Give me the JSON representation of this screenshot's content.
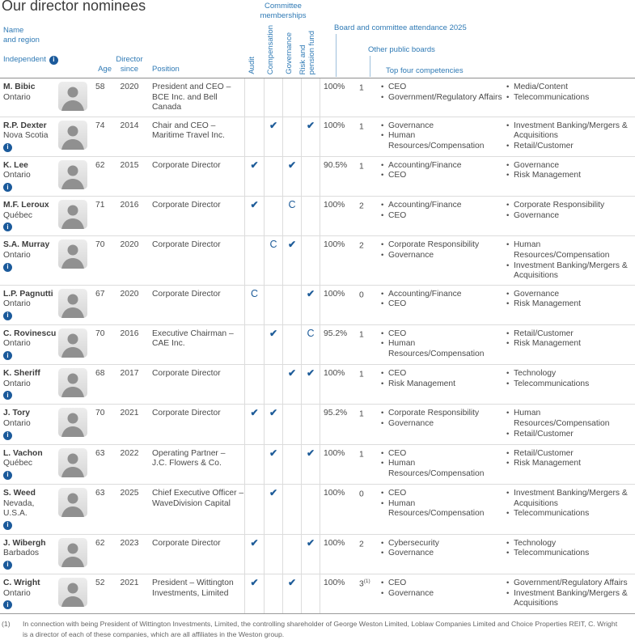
{
  "page": {
    "title": "Our director nominees"
  },
  "colors": {
    "header_blue": "#2f7ab5",
    "mark_blue": "#1e5c99",
    "info_blue": "#1b5a9b"
  },
  "header": {
    "name_region": "Name\nand region",
    "independent": "Independent",
    "age": "Age",
    "director_since": "Director\nsince",
    "position": "Position",
    "committee_group": "Committee\nmemberships",
    "committees": [
      "Audit",
      "Compensation",
      "Governance",
      "Risk and\npension fund"
    ],
    "attendance": "Board and committee attendance 2025",
    "other_boards": "Other public boards",
    "top_competencies": "Top four competencies"
  },
  "legend": {
    "check_icon": "✔",
    "chair_mark": "C",
    "info_glyph": "i"
  },
  "rows": [
    {
      "name": "M. Bibic",
      "region": "Ontario",
      "independent": false,
      "age": "58",
      "since": "2020",
      "position": "President and CEO –\nBCE Inc. and Bell Canada",
      "committees": [
        "",
        "",
        "",
        ""
      ],
      "attendance": "100%",
      "boards": "1",
      "boards_sup": "",
      "competencies_a": [
        "CEO",
        "Government/Regulatory Affairs"
      ],
      "competencies_b": [
        "Media/Content",
        "Telecommunications"
      ]
    },
    {
      "name": "R.P. Dexter",
      "region": "Nova Scotia",
      "independent": true,
      "age": "74",
      "since": "2014",
      "position": "Chair and CEO –\nMaritime Travel Inc.",
      "committees": [
        "",
        "check",
        "",
        "check"
      ],
      "attendance": "100%",
      "boards": "1",
      "boards_sup": "",
      "competencies_a": [
        "Governance",
        "Human Resources/Compensation"
      ],
      "competencies_b": [
        "Investment Banking/Mergers & Acquisitions",
        "Retail/Customer"
      ]
    },
    {
      "name": "K. Lee",
      "region": "Ontario",
      "independent": true,
      "age": "62",
      "since": "2015",
      "position": "Corporate Director",
      "committees": [
        "check",
        "",
        "check",
        ""
      ],
      "attendance": "90.5%",
      "boards": "1",
      "boards_sup": "",
      "competencies_a": [
        "Accounting/Finance",
        "CEO"
      ],
      "competencies_b": [
        "Governance",
        "Risk Management"
      ]
    },
    {
      "name": "M.F. Leroux",
      "region": "Québec",
      "independent": true,
      "age": "71",
      "since": "2016",
      "position": "Corporate Director",
      "committees": [
        "check",
        "",
        "chair",
        ""
      ],
      "attendance": "100%",
      "boards": "2",
      "boards_sup": "",
      "competencies_a": [
        "Accounting/Finance",
        "CEO"
      ],
      "competencies_b": [
        "Corporate Responsibility",
        "Governance"
      ]
    },
    {
      "name": "S.A. Murray",
      "region": "Ontario",
      "independent": true,
      "age": "70",
      "since": "2020",
      "position": "Corporate Director",
      "committees": [
        "",
        "chair",
        "check",
        ""
      ],
      "attendance": "100%",
      "boards": "2",
      "boards_sup": "",
      "competencies_a": [
        "Corporate Responsibility",
        "Governance"
      ],
      "competencies_b": [
        "Human Resources/Compensation",
        "Investment Banking/Mergers & Acquisitions"
      ]
    },
    {
      "name": "L.P. Pagnutti",
      "region": "Ontario",
      "independent": true,
      "age": "67",
      "since": "2020",
      "position": "Corporate Director",
      "committees": [
        "chair",
        "",
        "",
        "check"
      ],
      "attendance": "100%",
      "boards": "0",
      "boards_sup": "",
      "competencies_a": [
        "Accounting/Finance",
        "CEO"
      ],
      "competencies_b": [
        "Governance",
        "Risk Management"
      ]
    },
    {
      "name": "C. Rovinescu",
      "region": "Ontario",
      "independent": true,
      "age": "70",
      "since": "2016",
      "position": "Executive Chairman –\nCAE Inc.",
      "committees": [
        "",
        "check",
        "",
        "chair"
      ],
      "attendance": "95.2%",
      "boards": "1",
      "boards_sup": "",
      "competencies_a": [
        "CEO",
        "Human Resources/Compensation"
      ],
      "competencies_b": [
        "Retail/Customer",
        "Risk Management"
      ]
    },
    {
      "name": "K. Sheriff",
      "region": "Ontario",
      "independent": true,
      "age": "68",
      "since": "2017",
      "position": "Corporate Director",
      "committees": [
        "",
        "",
        "check",
        "check"
      ],
      "attendance": "100%",
      "boards": "1",
      "boards_sup": "",
      "competencies_a": [
        "CEO",
        "Risk Management"
      ],
      "competencies_b": [
        "Technology",
        "Telecommunications"
      ]
    },
    {
      "name": "J. Tory",
      "region": "Ontario",
      "independent": true,
      "age": "70",
      "since": "2021",
      "position": "Corporate Director",
      "committees": [
        "check",
        "check",
        "",
        ""
      ],
      "attendance": "95.2%",
      "boards": "1",
      "boards_sup": "",
      "competencies_a": [
        "Corporate Responsibility",
        "Governance"
      ],
      "competencies_b": [
        "Human Resources/Compensation",
        "Retail/Customer"
      ]
    },
    {
      "name": "L. Vachon",
      "region": "Québec",
      "independent": true,
      "age": "63",
      "since": "2022",
      "position": "Operating Partner –\nJ.C. Flowers & Co.",
      "committees": [
        "",
        "check",
        "",
        "check"
      ],
      "attendance": "100%",
      "boards": "1",
      "boards_sup": "",
      "competencies_a": [
        "CEO",
        "Human Resources/Compensation"
      ],
      "competencies_b": [
        "Retail/Customer",
        "Risk Management"
      ]
    },
    {
      "name": "S. Weed",
      "region": "Nevada, U.S.A.",
      "independent": true,
      "age": "63",
      "since": "2025",
      "position": "Chief Executive Officer –\nWaveDivision Capital",
      "committees": [
        "",
        "check",
        "",
        ""
      ],
      "attendance": "100%",
      "boards": "0",
      "boards_sup": "",
      "competencies_a": [
        "CEO",
        "Human Resources/Compensation"
      ],
      "competencies_b": [
        "Investment Banking/Mergers & Acquisitions",
        "Telecommunications"
      ]
    },
    {
      "name": "J. Wibergh",
      "region": "Barbados",
      "independent": true,
      "age": "62",
      "since": "2023",
      "position": "Corporate Director",
      "committees": [
        "check",
        "",
        "",
        "check"
      ],
      "attendance": "100%",
      "boards": "2",
      "boards_sup": "",
      "competencies_a": [
        "Cybersecurity",
        "Governance"
      ],
      "competencies_b": [
        "Technology",
        "Telecommunications"
      ]
    },
    {
      "name": "C. Wright",
      "region": "Ontario",
      "independent": true,
      "age": "52",
      "since": "2021",
      "position": "President – Wittington\nInvestments, Limited",
      "committees": [
        "check",
        "",
        "check",
        ""
      ],
      "attendance": "100%",
      "boards": "3",
      "boards_sup": "(1)",
      "competencies_a": [
        "CEO",
        "Governance"
      ],
      "competencies_b": [
        "Government/Regulatory Affairs",
        "Investment Banking/Mergers & Acquisitions"
      ]
    }
  ],
  "footnote": {
    "marker": "(1)",
    "text": "In connection with being President of Wittington Investments, Limited, the controlling shareholder of George Weston Limited, Loblaw Companies Limited and Choice Properties REIT, C. Wright\nis a director of each of these companies, which are all affiliates in the Weston group."
  }
}
